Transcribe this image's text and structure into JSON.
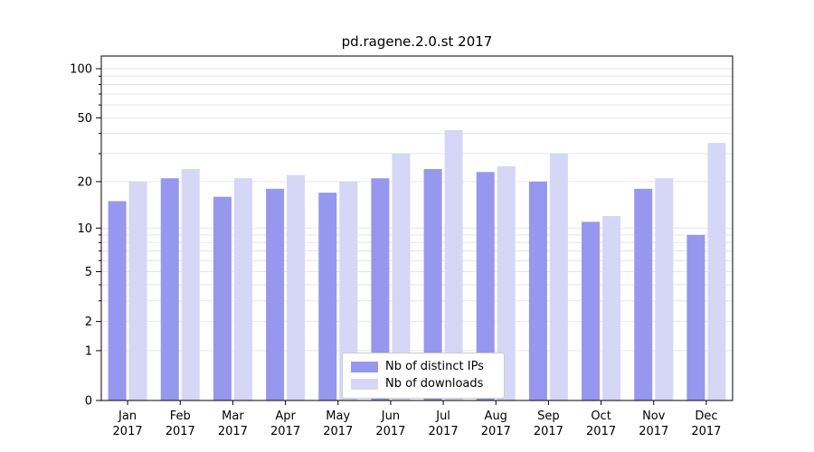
{
  "chart_data": {
    "type": "bar",
    "title": "pd.ragene.2.0.st 2017",
    "categories": [
      "Jan",
      "Feb",
      "Mar",
      "Apr",
      "May",
      "Jun",
      "Jul",
      "Aug",
      "Sep",
      "Oct",
      "Nov",
      "Dec"
    ],
    "year": "2017",
    "series": [
      {
        "name": "Nb of distinct IPs",
        "color": "#9697ee",
        "values": [
          15,
          21,
          16,
          18,
          17,
          21,
          24,
          23,
          20,
          11,
          18,
          9
        ]
      },
      {
        "name": "Nb of downloads",
        "color": "#d6d6f7",
        "values": [
          20,
          24,
          21,
          22,
          20,
          30,
          42,
          25,
          30,
          12,
          21,
          35
        ]
      }
    ],
    "y_ticks": [
      0,
      1,
      2,
      5,
      10,
      20,
      50,
      100
    ],
    "y_scale": "log10(1+x)",
    "ylim": [
      0,
      120
    ],
    "grid": "horizontal",
    "grid_values": [
      1,
      2,
      3,
      4,
      5,
      6,
      7,
      8,
      9,
      10,
      20,
      30,
      40,
      50,
      60,
      70,
      80,
      90,
      100
    ],
    "legend_position": "lower center",
    "colors": {
      "axis": "#000000",
      "grid": "#e6e6e6",
      "background": "#ffffff"
    }
  }
}
